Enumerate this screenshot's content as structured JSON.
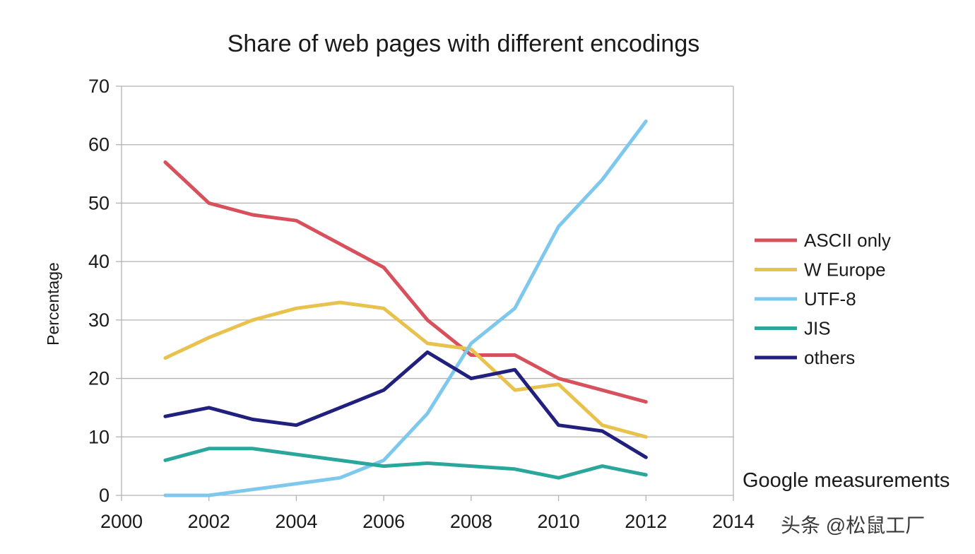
{
  "chart_data": {
    "type": "line",
    "title": "Share of web pages with different encodings",
    "xlabel": "",
    "ylabel": "Percentage",
    "xlim": [
      2000,
      2014
    ],
    "ylim": [
      0,
      70
    ],
    "x_ticks": [
      2000,
      2002,
      2004,
      2006,
      2008,
      2010,
      2012,
      2014
    ],
    "y_ticks": [
      0,
      10,
      20,
      30,
      40,
      50,
      60,
      70
    ],
    "grid": "horizontal",
    "legend_position": "right",
    "x": [
      2001,
      2002,
      2003,
      2004,
      2005,
      2006,
      2007,
      2008,
      2009,
      2010,
      2011,
      2012
    ],
    "series": [
      {
        "name": "ASCII only",
        "color": "#d9505d",
        "values": [
          57,
          50,
          48,
          47,
          43,
          39,
          30,
          24,
          24,
          20,
          18,
          16
        ]
      },
      {
        "name": "W Europe",
        "color": "#e8c24d",
        "values": [
          23.5,
          27,
          30,
          32,
          33,
          32,
          26,
          25,
          18,
          19,
          12,
          10
        ]
      },
      {
        "name": "UTF-8",
        "color": "#7ec8ee",
        "values": [
          0,
          0,
          1,
          2,
          3,
          6,
          14,
          26,
          32,
          46,
          54,
          64
        ]
      },
      {
        "name": "JIS",
        "color": "#2ba69c",
        "values": [
          6,
          8,
          8,
          7,
          6,
          5,
          5.5,
          5,
          4.5,
          3,
          5,
          3.5
        ]
      },
      {
        "name": "others",
        "color": "#21207e",
        "values": [
          13.5,
          15,
          13,
          12,
          15,
          18,
          24.5,
          20,
          21.5,
          12,
          11,
          6.5
        ]
      }
    ],
    "annotation": "Google measurements"
  },
  "watermark": "头条 @松鼠工厂"
}
